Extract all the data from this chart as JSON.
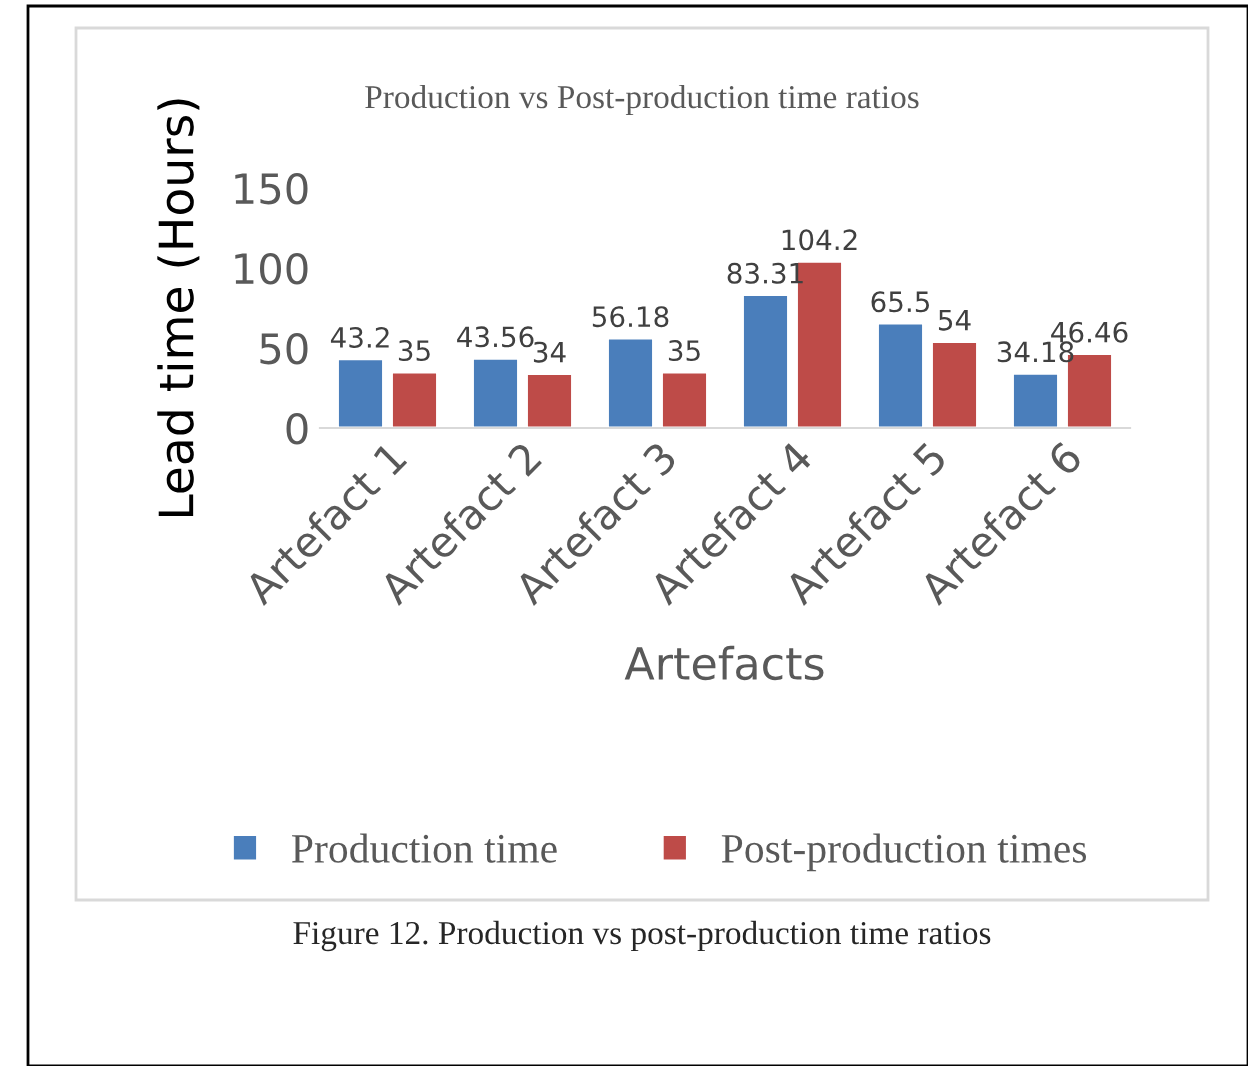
{
  "chart_data": {
    "type": "bar",
    "title": "Production vs Post-production time ratios",
    "ylabel": "Lead time (Hours)",
    "xlabel": "Artefacts",
    "categories": [
      "Artefact 1",
      "Artefact 2",
      "Artefact 3",
      "Artefact 4",
      "Artefact 5",
      "Artefact 6"
    ],
    "series": [
      {
        "name": "Production time",
        "color": "#4a7ebb",
        "values": [
          43.2,
          43.56,
          56.18,
          83.31,
          65.5,
          34.18
        ]
      },
      {
        "name": "Post-production times",
        "color": "#be4b48",
        "values": [
          35,
          34,
          35,
          104.2,
          54,
          46.46
        ]
      }
    ],
    "ylim": [
      0,
      150
    ],
    "yticks": [
      0,
      50,
      100,
      150
    ],
    "data_labels": true,
    "legend": "bottom",
    "grid": false,
    "annotations": [
      "Figure 12. Production vs post-production time ratios"
    ]
  }
}
